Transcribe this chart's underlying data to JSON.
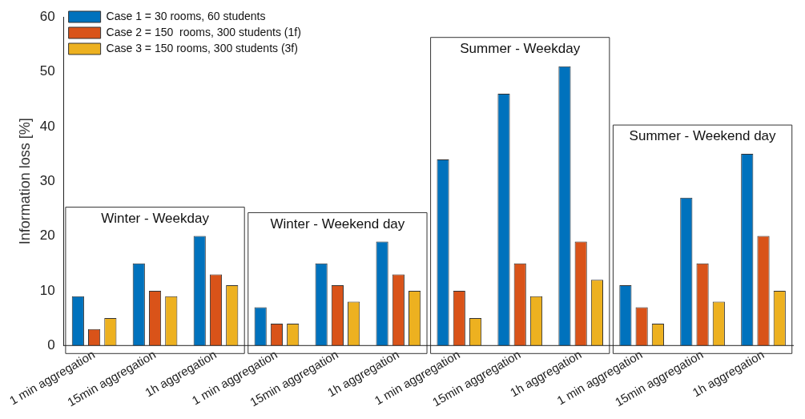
{
  "chart_data": {
    "type": "bar",
    "ylabel": "Information loss [%]",
    "categories": [
      "1 min aggregation",
      "15min aggregation",
      "1h aggregation",
      "1 min aggregation",
      "15min aggregation",
      "1h aggregation",
      "1 min aggregation",
      "15min aggregation",
      "1h aggregation",
      "1 min aggregation",
      "15min aggregation",
      "1h aggregation"
    ],
    "series": [
      {
        "name": "Case 1 = 30 rooms, 60 students",
        "color": "#0072bd",
        "values": [
          9,
          15,
          20,
          7,
          15,
          19,
          34,
          46,
          51,
          11,
          27,
          35
        ]
      },
      {
        "name": "Case 2 = 150  rooms, 300 students (1f)",
        "color": "#d95319",
        "values": [
          3,
          10,
          13,
          4,
          11,
          13,
          10,
          15,
          19,
          7,
          15,
          20
        ]
      },
      {
        "name": "Case 3 = 150 rooms, 300 students (3f)",
        "color": "#edb120",
        "values": [
          5,
          9,
          11,
          4,
          8,
          10,
          5,
          9,
          12,
          4,
          8,
          10
        ]
      }
    ],
    "ylim": [
      0,
      60
    ],
    "yticks": [
      0,
      10,
      20,
      30,
      40,
      50,
      60
    ],
    "grid": false,
    "legend": "top left",
    "annotations": [
      "Winter - Weekday",
      "Winter - Weekend day",
      "Summer - Weekday",
      "Summer - Weekend day"
    ]
  }
}
